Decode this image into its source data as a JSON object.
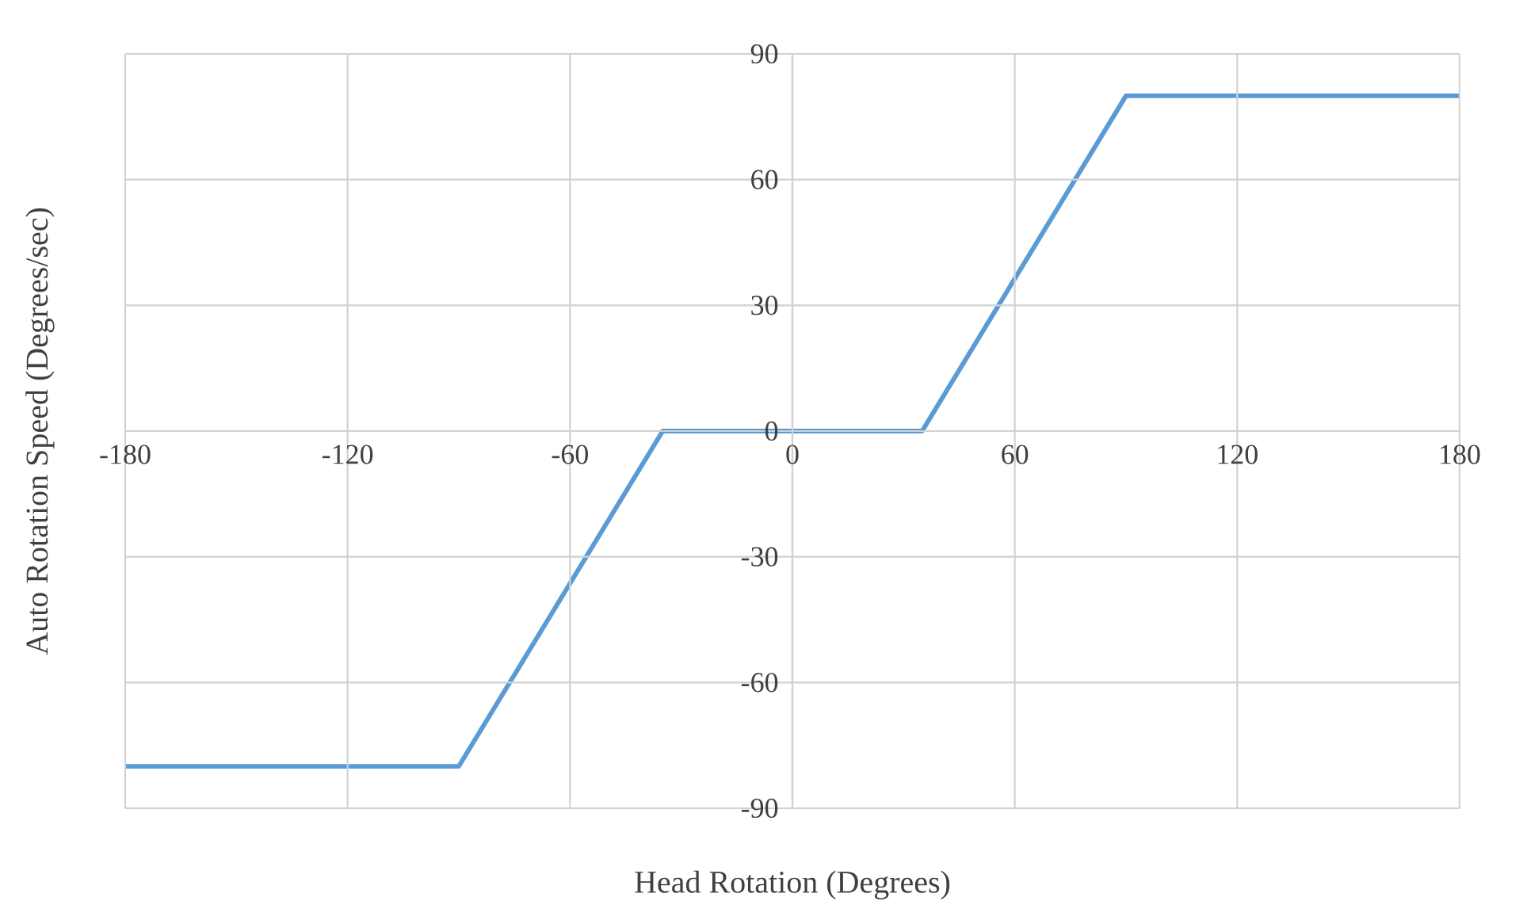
{
  "chart_data": {
    "type": "line",
    "xlabel": "Head Rotation (Degrees)",
    "ylabel": "Auto Rotation Speed (Degrees/sec)",
    "x": [
      -180,
      -90,
      -35,
      35,
      90,
      180
    ],
    "values": [
      -80,
      -80,
      0,
      0,
      80,
      80
    ],
    "color": "#5b9bd5",
    "line_style": "solid",
    "xlim": [
      -180,
      180
    ],
    "ylim": [
      -90,
      90
    ],
    "xticks": [
      -180,
      -120,
      -60,
      0,
      60,
      120,
      180
    ],
    "yticks": [
      -90,
      -60,
      -30,
      0,
      30,
      60,
      90
    ],
    "grid": true
  }
}
